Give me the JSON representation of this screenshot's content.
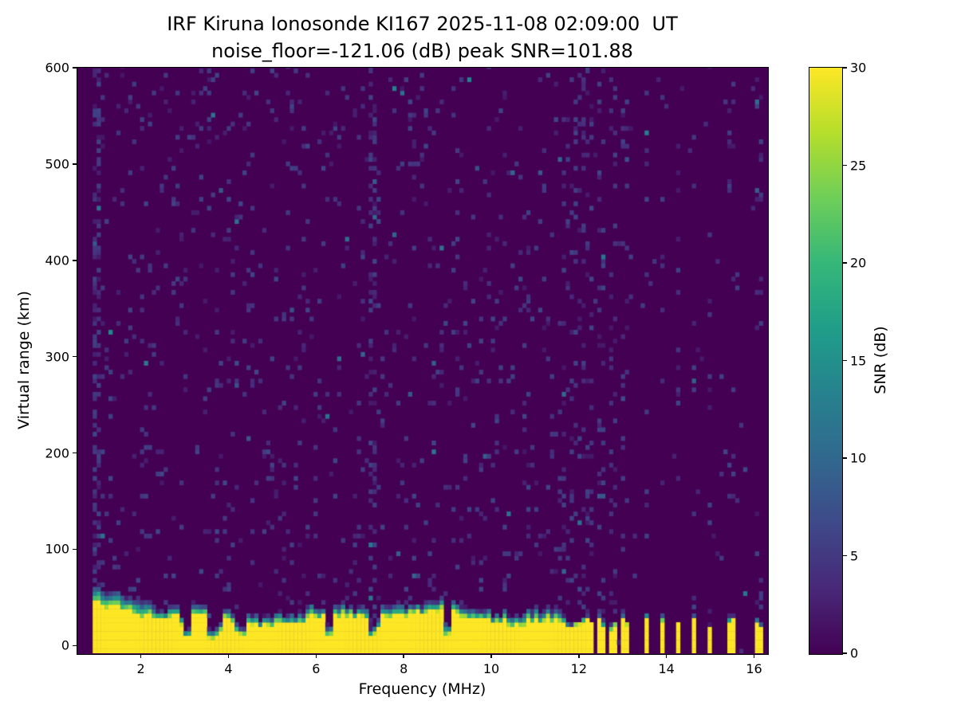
{
  "title": {
    "line1": "IRF Kiruna Ionosonde KI167 2025-11-08 02:09:00  UT",
    "line2": "noise_floor=-121.06 (dB) peak SNR=101.88"
  },
  "chart_data": {
    "type": "heatmap",
    "title": "IRF Kiruna Ionosonde KI167 2025-11-08 02:09:00  UT",
    "subtitle": "noise_floor=-121.06 (dB) peak SNR=101.88",
    "station": "IRF Kiruna Ionosonde KI167",
    "timestamp_ut": "2025-11-08 02:09:00",
    "noise_floor_db": -121.06,
    "peak_snr_db": 101.88,
    "xlabel": "Frequency (MHz)",
    "ylabel": "Virtual range (km)",
    "xlim": [
      0.55,
      16.3
    ],
    "ylim": [
      -8,
      600
    ],
    "xticks": [
      2,
      4,
      6,
      8,
      10,
      12,
      14,
      16
    ],
    "yticks": [
      0,
      100,
      200,
      300,
      400,
      500,
      600
    ],
    "grid": false,
    "colorbar": {
      "label": "SNR (dB)",
      "min": 0,
      "max": 30,
      "ticks": [
        0,
        5,
        10,
        15,
        20,
        25,
        30
      ],
      "colormap": "viridis",
      "colormap_stops": [
        "#440154",
        "#482878",
        "#3e4989",
        "#31688e",
        "#26828e",
        "#1f9e89",
        "#35b779",
        "#6ece58",
        "#b5de2b",
        "#fde725"
      ]
    },
    "freq_range_mhz": [
      0.9,
      16.15
    ],
    "freq_bin_mhz": 0.09,
    "range_bin_km": 4.6,
    "continuous_sweep_max_mhz": 11.62,
    "sparse_freqs_mhz": [
      11.66,
      11.76,
      11.86,
      11.96,
      12.06,
      12.16,
      12.31,
      12.46,
      12.56,
      12.71,
      12.86,
      13.01,
      13.11,
      13.51,
      13.56,
      13.91,
      14.26,
      14.61,
      14.66,
      15.01,
      15.46,
      15.51,
      16.06,
      16.11
    ],
    "ground_clutter": {
      "snr_db": 30,
      "mean_top_km": 30,
      "low_freq_extra_km": 8,
      "fringe_km": 12,
      "notch_freqs_mhz": [
        3.05,
        3.6,
        3.75,
        4.3,
        6.3,
        7.3,
        9.0
      ]
    },
    "interference_freqs_mhz": [
      0.95,
      7.3
    ],
    "noise": {
      "background_speckle_fraction": 0.055,
      "speckle_snr_db": [
        2,
        8
      ],
      "dense_column_fraction": 0.45
    },
    "background_snr_db": 0
  }
}
